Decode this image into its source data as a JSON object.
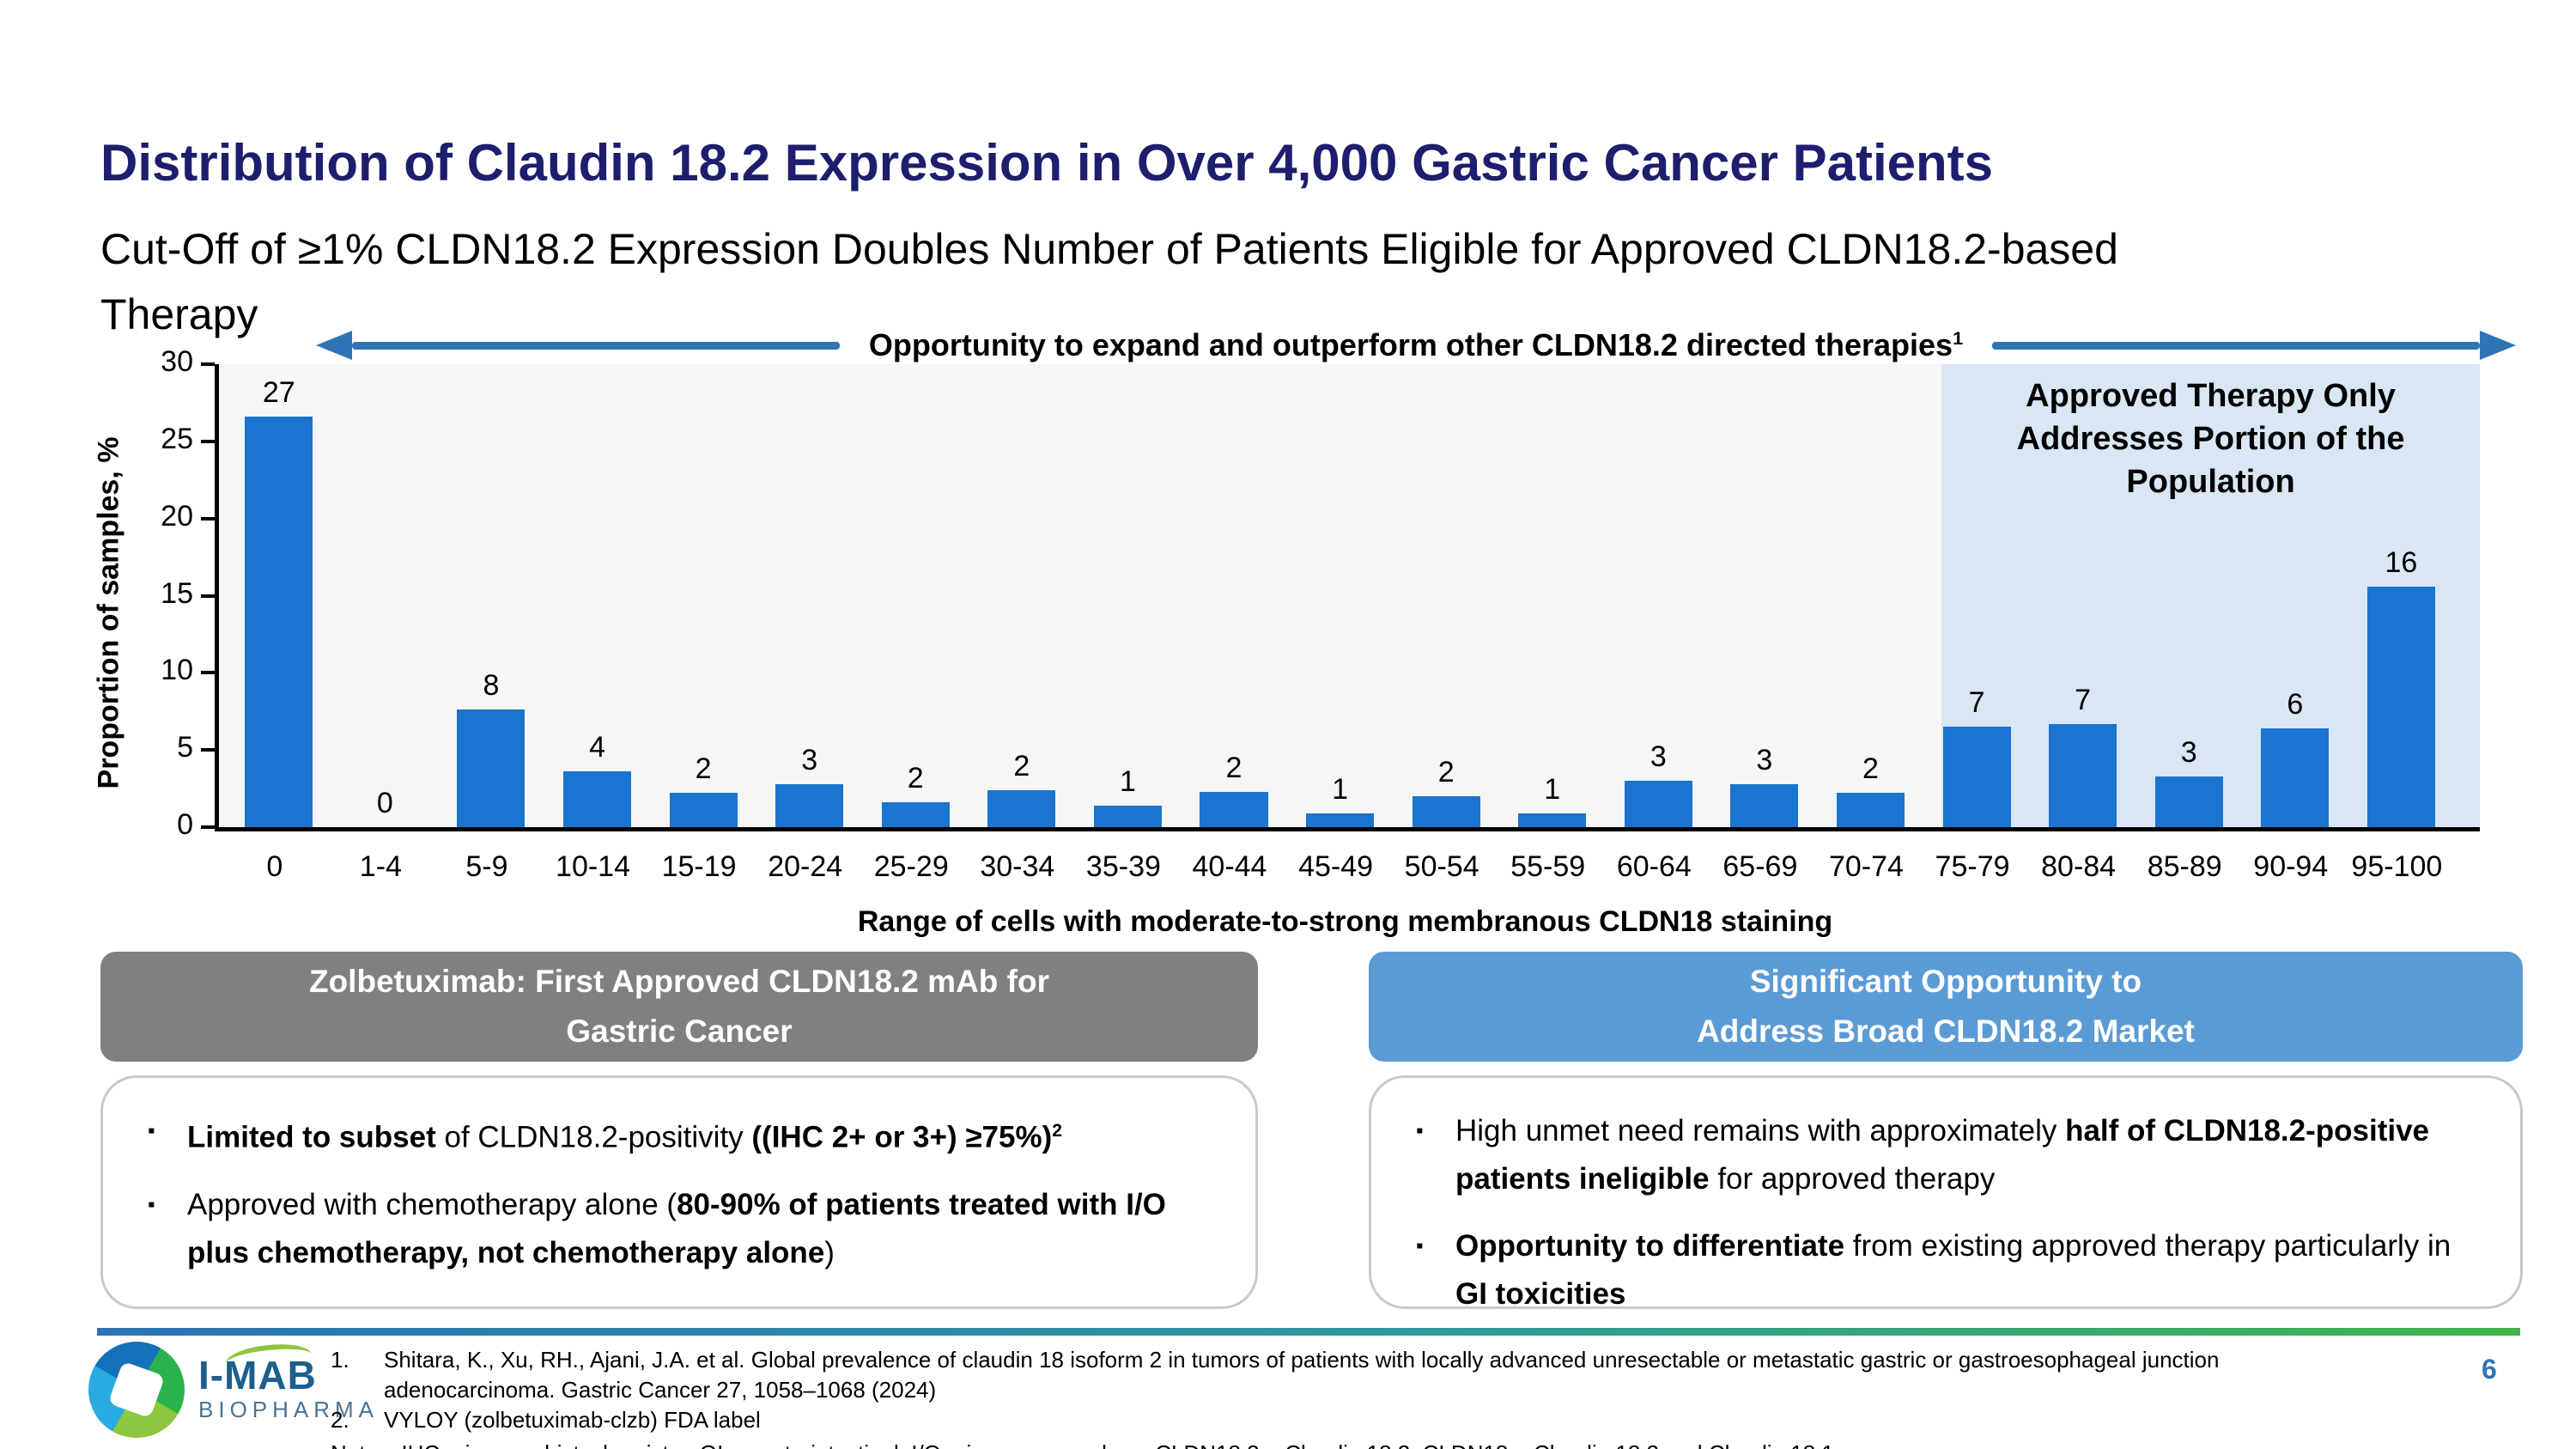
{
  "slide": {
    "title": "Distribution of Claudin 18.2 Expression in Over 4,000 Gastric Cancer Patients",
    "subtitle_line1": "Cut-Off of ≥1% CLDN18.2 Expression Doubles Number of Patients Eligible for Approved CLDN18.2-based",
    "subtitle_line2": "Therapy",
    "page_number": "6"
  },
  "annotation_arrow": {
    "label": "Opportunity to expand and outperform other CLDN18.2 directed therapies",
    "superscript": "1",
    "color": "#2e75b6"
  },
  "chart_data": {
    "type": "bar",
    "title": "",
    "xlabel": "Range of cells with moderate-to-strong membranous CLDN18 staining",
    "ylabel": "Proportion of samples, %",
    "ylim": [
      0,
      30
    ],
    "yticks": [
      0,
      5,
      10,
      15,
      20,
      25,
      30
    ],
    "grid": false,
    "legend": null,
    "categories": [
      "0",
      "1-4",
      "5-9",
      "10-14",
      "15-19",
      "20-24",
      "25-29",
      "30-34",
      "35-39",
      "40-44",
      "45-49",
      "50-54",
      "55-59",
      "60-64",
      "65-69",
      "70-74",
      "75-79",
      "80-84",
      "85-89",
      "90-94",
      "95-100"
    ],
    "values": [
      27,
      0,
      8,
      4,
      2,
      3,
      2,
      2,
      1,
      2,
      1,
      2,
      1,
      3,
      3,
      2,
      7,
      7,
      3,
      6,
      16
    ],
    "drawn_heights": [
      26.6,
      0,
      7.6,
      3.6,
      2.2,
      2.8,
      1.6,
      2.4,
      1.4,
      2.3,
      0.9,
      2.0,
      0.9,
      3.0,
      2.8,
      2.2,
      6.5,
      6.7,
      3.3,
      6.4,
      15.6
    ],
    "bar_color": "#1b74cf",
    "plot_background": "#f6f6f6",
    "highlight": {
      "covers_categories": [
        "75-79",
        "80-84",
        "85-89",
        "90-94",
        "95-100"
      ],
      "color": "#d9e6f4",
      "label_lines": [
        "Approved Therapy Only",
        "Addresses Portion of the",
        "Population"
      ]
    }
  },
  "left_panel": {
    "header_color": "#808080",
    "header_lines": [
      "Zolbetuximab: First Approved CLDN18.2 mAb for",
      "Gastric Cancer"
    ],
    "bullets": [
      {
        "segments": [
          {
            "t": "Limited to subset",
            "b": true
          },
          {
            "t": " of CLDN18.2-positivity ",
            "b": false
          },
          {
            "t": "((IHC 2+ or 3+) ≥75%)",
            "b": true
          },
          {
            "t": "2",
            "b": true,
            "sup": true
          }
        ]
      },
      {
        "segments": [
          {
            "t": "Approved with chemotherapy alone (",
            "b": false
          },
          {
            "t": "80-90% of patients treated with I/O plus chemotherapy, not chemotherapy alone",
            "b": true
          },
          {
            "t": ")",
            "b": false
          }
        ]
      }
    ]
  },
  "right_panel": {
    "header_color": "#5b9bd5",
    "header_lines": [
      "Significant Opportunity to",
      "Address Broad CLDN18.2 Market"
    ],
    "bullets": [
      {
        "segments": [
          {
            "t": "High unmet need remains with approximately ",
            "b": false
          },
          {
            "t": "half of CLDN18.2-positive patients ineligible",
            "b": true
          },
          {
            "t": " for approved therapy",
            "b": false
          }
        ]
      },
      {
        "segments": [
          {
            "t": "Opportunity to differentiate",
            "b": true
          },
          {
            "t": " from existing approved therapy particularly in ",
            "b": false
          },
          {
            "t": "GI toxicities",
            "b": true
          }
        ]
      }
    ]
  },
  "footer": {
    "references": [
      {
        "num": "1.",
        "text": "Shitara, K., Xu, RH., Ajani, J.A. et al. Global prevalence of claudin 18 isoform 2 in tumors of patients with locally advanced unresectable or metastatic gastric or gastroesophageal junction adenocarcinoma. Gastric Cancer 27, 1058–1068 (2024)"
      },
      {
        "num": "2.",
        "text": "VYLOY (zolbetuximab-clzb) FDA label"
      }
    ],
    "notes": "Notes: IHC = immunohistochemistry; GI = gastrointestinal; I/O = immuno-oncology; CLDN18.2 = Claudin 18.2; CLDN18 = Claudin 18.2 and Claudin 18.1",
    "logo_name": "I-MAB",
    "logo_sub": "BIOPHARMA"
  }
}
